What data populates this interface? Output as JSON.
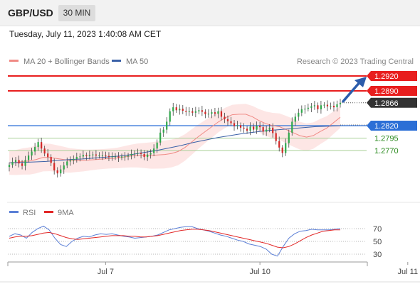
{
  "header": {
    "symbol": "GBP/USD",
    "timeframe": "30 MIN"
  },
  "timestamp": "Tuesday, July 11, 2023 1:40:08 AM CET",
  "colors": {
    "resistance": "#e81e1e",
    "pivot": "#2c6fd6",
    "support": "#2a8a1e",
    "support_line": "#a7cf96",
    "candle_up": "#2ea84a",
    "candle_down": "#d32727",
    "price_tag": "#333333",
    "bollinger_fill": "#fde2e0",
    "ma20": "#f08a85",
    "ma50": "#3b61a8",
    "rsi": "#5b7fd6",
    "rsi_ma": "#e22727",
    "arrow": "#2b5cab"
  },
  "chart_data": [
    {
      "type": "candlestick",
      "legend": [
        {
          "label": "MA 20 + Bollinger Bands",
          "color": "#f08a85"
        },
        {
          "label": "MA 50",
          "color": "#3b61a8"
        }
      ],
      "source_label": "Research © 2023 Trading Central",
      "ylim": [
        1.271,
        1.293
      ],
      "x_ticks": [
        {
          "label": "Jul 7",
          "index": 30
        },
        {
          "label": "Jul 10",
          "index": 78
        },
        {
          "label": "Jul 11",
          "index": 124
        }
      ],
      "levels": [
        {
          "value": 1.292,
          "label": "1.2920",
          "kind": "resistance"
        },
        {
          "value": 1.289,
          "label": "1.2890",
          "kind": "resistance"
        },
        {
          "value": 1.2866,
          "label": "1.2866",
          "kind": "last"
        },
        {
          "value": 1.282,
          "label": "1.2820",
          "kind": "pivot"
        },
        {
          "value": 1.2795,
          "label": "1.2795",
          "kind": "support"
        },
        {
          "value": 1.277,
          "label": "1.2770",
          "kind": "support"
        }
      ],
      "closes": [
        1.2741,
        1.2747,
        1.2751,
        1.2744,
        1.2739,
        1.2751,
        1.276,
        1.2768,
        1.2777,
        1.2787,
        1.2774,
        1.2764,
        1.2757,
        1.2745,
        1.273,
        1.2724,
        1.2732,
        1.274,
        1.2748,
        1.275,
        1.2753,
        1.2757,
        1.2758,
        1.2761,
        1.2759,
        1.2761,
        1.2762,
        1.276,
        1.276,
        1.276,
        1.2759,
        1.2757,
        1.2758,
        1.2758,
        1.2756,
        1.2758,
        1.2758,
        1.276,
        1.2763,
        1.2764,
        1.2765,
        1.2763,
        1.2757,
        1.2762,
        1.2765,
        1.2774,
        1.2786,
        1.2806,
        1.2812,
        1.2828,
        1.2849,
        1.2857,
        1.2851,
        1.2854,
        1.285,
        1.2848,
        1.2849,
        1.2846,
        1.2849,
        1.2851,
        1.2848,
        1.2843,
        1.2844,
        1.2847,
        1.2844,
        1.2849,
        1.2838,
        1.2833,
        1.2829,
        1.2825,
        1.2819,
        1.2821,
        1.2816,
        1.2814,
        1.281,
        1.2818,
        1.2812,
        1.282,
        1.2817,
        1.2808,
        1.2812,
        1.2816,
        1.2805,
        1.2789,
        1.2776,
        1.2765,
        1.2785,
        1.2806,
        1.2828,
        1.2838,
        1.2846,
        1.2853,
        1.2854,
        1.2856,
        1.2859,
        1.2861,
        1.2853,
        1.2861,
        1.2862,
        1.2859,
        1.286,
        1.2857,
        1.2863,
        1.2866
      ],
      "ma20": [
        1.2745,
        1.2746,
        1.2748,
        1.2749,
        1.2752,
        1.2756,
        1.2756,
        1.2754,
        1.2752,
        1.275,
        1.275,
        1.275,
        1.2751,
        1.2752,
        1.2753,
        1.2754,
        1.2755,
        1.2757,
        1.2759,
        1.276,
        1.276,
        1.276,
        1.2761,
        1.2762,
        1.2764,
        1.2768,
        1.2776,
        1.2787,
        1.2798,
        1.2808,
        1.2818,
        1.2828,
        1.2836,
        1.2842,
        1.2843,
        1.2843,
        1.2838,
        1.283,
        1.2824,
        1.282,
        1.2818,
        1.2812,
        1.2806,
        1.28,
        1.2797,
        1.28,
        1.2808,
        1.2815,
        1.2826,
        1.2837
      ],
      "ma50": [
        1.2745,
        1.2746,
        1.2747,
        1.2748,
        1.275,
        1.2752,
        1.2753,
        1.2755,
        1.2757,
        1.2759,
        1.2762,
        1.2766,
        1.277,
        1.2775,
        1.278,
        1.2786,
        1.2791,
        1.2796,
        1.28,
        1.2804,
        1.2807,
        1.281,
        1.2812,
        1.2814,
        1.2816,
        1.2818,
        1.2819,
        1.282
      ]
    },
    {
      "type": "line",
      "legend": [
        {
          "label": "RSI",
          "color": "#5b7fd6"
        },
        {
          "label": "9MA",
          "color": "#e22727"
        }
      ],
      "ylim": [
        20,
        80
      ],
      "y_ticks": [
        70,
        50,
        30
      ],
      "series": [
        {
          "name": "RSI",
          "values": [
            58,
            62,
            60,
            55,
            64,
            70,
            74,
            68,
            55,
            45,
            42,
            50,
            55,
            58,
            57,
            60,
            62,
            61,
            62,
            60,
            58,
            57,
            55,
            56,
            57,
            58,
            60,
            64,
            68,
            70,
            72,
            73,
            73,
            70,
            68,
            66,
            63,
            60,
            58,
            55,
            52,
            50,
            46,
            44,
            42,
            38,
            30,
            27,
            42,
            55,
            62,
            66,
            67,
            69,
            68,
            68,
            68,
            69,
            70
          ]
        },
        {
          "name": "9MA",
          "values": [
            55,
            57,
            58,
            58,
            59,
            61,
            63,
            64,
            62,
            59,
            56,
            54,
            53,
            54,
            55,
            56,
            57,
            58,
            59,
            59,
            59,
            58,
            58,
            57,
            57,
            58,
            59,
            61,
            63,
            65,
            67,
            68,
            69,
            69,
            68,
            67,
            65,
            63,
            61,
            59,
            57,
            55,
            53,
            51,
            49,
            47,
            44,
            41,
            40,
            42,
            46,
            51,
            56,
            60,
            63,
            66,
            67,
            68,
            68
          ]
        }
      ]
    }
  ]
}
